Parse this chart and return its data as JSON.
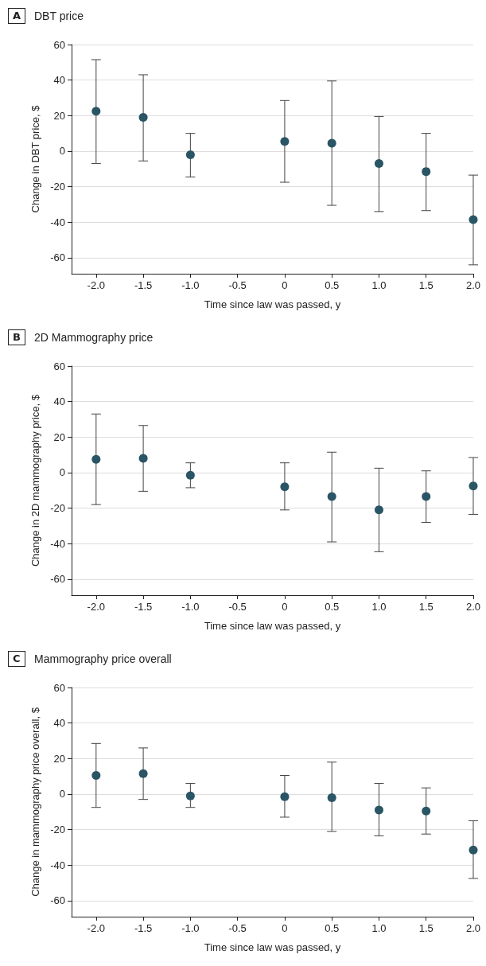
{
  "chart_data": [
    {
      "type": "scatter",
      "title": "DBT price",
      "annotations": [
        "A"
      ],
      "xlabel": "Time since law was passed, y",
      "ylabel": "Change in DBT price, $",
      "x": [
        -2,
        -1.5,
        -1,
        0,
        0.5,
        1,
        1.5,
        2
      ],
      "values": [
        22.5,
        19,
        -2,
        5.5,
        4.5,
        -7,
        -11.5,
        -38.5
      ],
      "color": "#2a5565",
      "errors": [
        [
          -7,
          51.5
        ],
        [
          -5.5,
          43
        ],
        [
          -14.5,
          10
        ],
        [
          -17.5,
          28.5
        ],
        [
          -30.5,
          39.5
        ],
        [
          -34,
          19.5
        ],
        [
          -33.5,
          10
        ],
        [
          -64,
          -13.5
        ]
      ],
      "xlim": [
        -2.26,
        2
      ],
      "xticks": [
        {
          "value": -2,
          "label": "-2.0"
        },
        -1.5,
        {
          "value": -1,
          "label": "-1.0"
        },
        -0.5,
        0,
        0.5,
        {
          "value": 1,
          "label": "1.0"
        },
        1.5,
        {
          "value": 2,
          "label": "2.0"
        }
      ],
      "ylim": [
        -69,
        60
      ],
      "yticks": [
        -60,
        -40,
        -20,
        0,
        20,
        40,
        60
      ],
      "grid": "y",
      "marker": "circle"
    },
    {
      "type": "scatter",
      "title": "2D Mammography price",
      "annotations": [
        "B"
      ],
      "xlabel": "Time since law was passed, y",
      "ylabel": "Change in 2D mammography price, $",
      "x": [
        -2,
        -1.5,
        -1,
        0,
        0.5,
        1,
        1.5,
        2
      ],
      "values": [
        7.5,
        8,
        -1.5,
        -8,
        -13.5,
        -21,
        -13.5,
        -7.5
      ],
      "color": "#2a5565",
      "errors": [
        [
          -18,
          33
        ],
        [
          -10.5,
          26.5
        ],
        [
          -8.5,
          5.5
        ],
        [
          -21,
          5.5
        ],
        [
          -39,
          11.5
        ],
        [
          -44.5,
          2.5
        ],
        [
          -28,
          1
        ],
        [
          -23.5,
          8.5
        ]
      ],
      "xlim": [
        -2.26,
        2
      ],
      "xticks": [
        {
          "value": -2,
          "label": "-2.0"
        },
        -1.5,
        {
          "value": -1,
          "label": "-1.0"
        },
        -0.5,
        0,
        0.5,
        {
          "value": 1,
          "label": "1.0"
        },
        1.5,
        {
          "value": 2,
          "label": "2.0"
        }
      ],
      "ylim": [
        -69,
        60
      ],
      "yticks": [
        -60,
        -40,
        -20,
        0,
        20,
        40,
        60
      ],
      "grid": "y",
      "marker": "circle"
    },
    {
      "type": "scatter",
      "title": "Mammography price overall",
      "annotations": [
        "C"
      ],
      "xlabel": "Time since law was passed, y",
      "ylabel": "Change in mammography price overall, $",
      "x": [
        -2,
        -1.5,
        -1,
        0,
        0.5,
        1,
        1.5,
        2
      ],
      "values": [
        10.5,
        11.5,
        -1,
        -1.5,
        -2,
        -9,
        -9.5,
        -31.5
      ],
      "color": "#2a5565",
      "errors": [
        [
          -7.5,
          28.5
        ],
        [
          -3,
          26
        ],
        [
          -7.5,
          6
        ],
        [
          -13,
          10.5
        ],
        [
          -21,
          18
        ],
        [
          -23.5,
          6
        ],
        [
          -22.5,
          3.5
        ],
        [
          -47.5,
          -15
        ]
      ],
      "xlim": [
        -2.26,
        2
      ],
      "xticks": [
        {
          "value": -2,
          "label": "-2.0"
        },
        -1.5,
        {
          "value": -1,
          "label": "-1.0"
        },
        -0.5,
        0,
        0.5,
        {
          "value": 1,
          "label": "1.0"
        },
        1.5,
        {
          "value": 2,
          "label": "2.0"
        }
      ],
      "ylim": [
        -69,
        60
      ],
      "yticks": [
        -60,
        -40,
        -20,
        0,
        20,
        40,
        60
      ],
      "grid": "y",
      "marker": "circle"
    }
  ]
}
